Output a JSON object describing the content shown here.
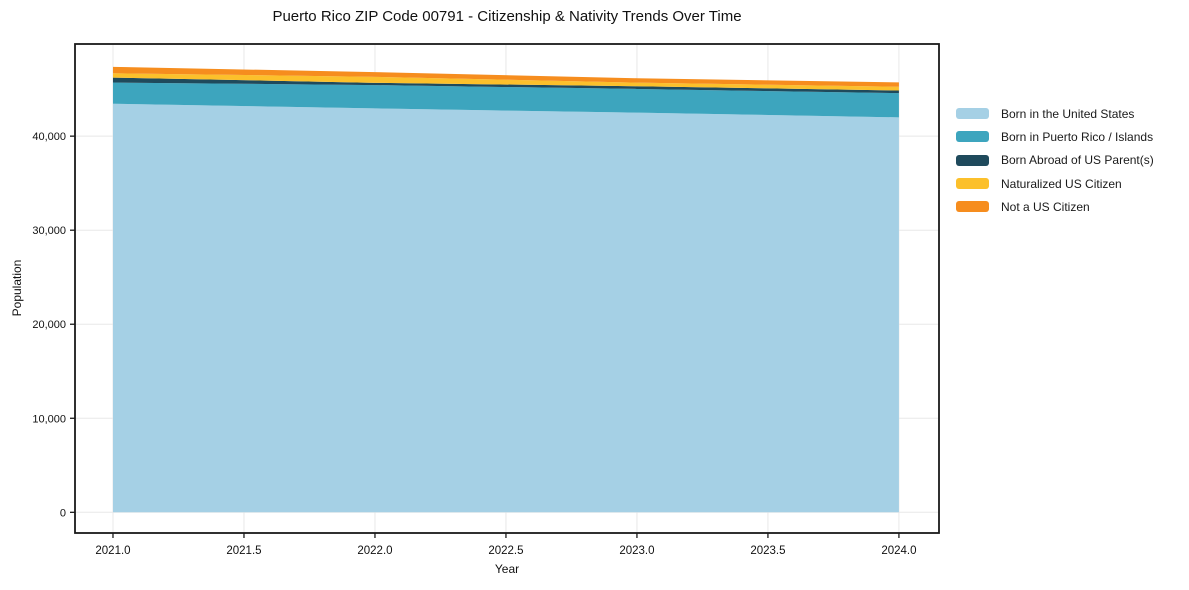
{
  "figure": {
    "background": "#ffffff",
    "axis_color": "#1a1a1a",
    "grid_color": "#e8e8e8",
    "text_color": "#111111"
  },
  "chart_data": {
    "type": "area",
    "stacked": true,
    "title": "Puerto Rico ZIP Code 00791 - Citizenship & Nativity Trends Over Time",
    "xlabel": "Year",
    "ylabel": "Population",
    "grid": true,
    "legend_position": "right-outside",
    "x": [
      2021,
      2022,
      2023,
      2024
    ],
    "series": [
      {
        "name": "Born in the United States",
        "color": "#a5d0e5",
        "values": [
          43450,
          42950,
          42500,
          42000
        ]
      },
      {
        "name": "Born in Puerto Rico / Islands",
        "color": "#3da5be",
        "values": [
          2250,
          2480,
          2520,
          2570
        ]
      },
      {
        "name": "Born Abroad of US Parent(s)",
        "color": "#1f4a5c",
        "values": [
          530,
          240,
          290,
          280
        ]
      },
      {
        "name": "Naturalized US Citizen",
        "color": "#fcc02b",
        "values": [
          460,
          640,
          380,
          400
        ]
      },
      {
        "name": "Not a US Citizen",
        "color": "#f68d1e",
        "values": [
          680,
          500,
          470,
          470
        ]
      }
    ],
    "stack_totals": [
      47370,
      46810,
      46160,
      45720
    ],
    "x_tick_labels": [
      "2021.0",
      "2021.5",
      "2022.0",
      "2022.5",
      "2023.0",
      "2023.5",
      "2024.0"
    ],
    "x_tick_values": [
      2021.0,
      2021.5,
      2022.0,
      2022.5,
      2023.0,
      2023.5,
      2024.0
    ],
    "y_tick_labels": [
      "0",
      "10,000",
      "20,000",
      "30,000",
      "40,000"
    ],
    "y_tick_values": [
      0,
      10000,
      20000,
      30000,
      40000
    ],
    "xlim": [
      2020.855,
      2024.153
    ],
    "ylim": [
      -2200,
      49800
    ]
  }
}
